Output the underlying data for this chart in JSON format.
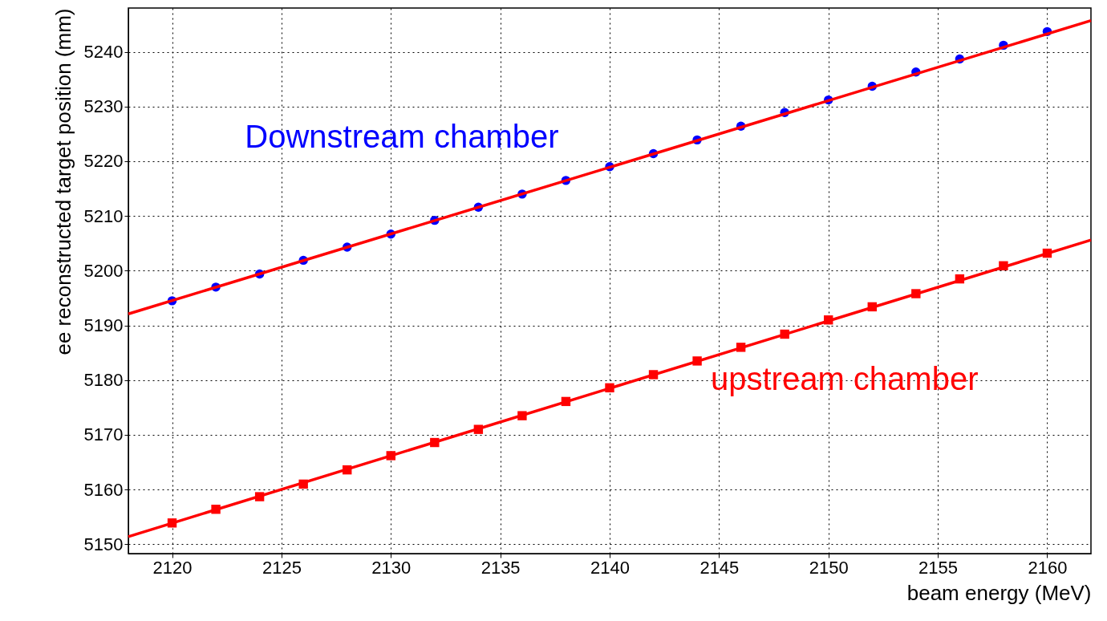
{
  "chart_data": {
    "type": "scatter",
    "xlabel": "beam energy (MeV)",
    "ylabel": "ee reconstructed target position (mm)",
    "xlim": [
      2118,
      2162
    ],
    "ylim": [
      5148.3,
      5248
    ],
    "xticks": [
      2120,
      2125,
      2130,
      2135,
      2140,
      2145,
      2150,
      2155,
      2160
    ],
    "yticks": [
      5150,
      5160,
      5170,
      5180,
      5190,
      5200,
      5210,
      5220,
      5230,
      5240
    ],
    "grid": true,
    "series": [
      {
        "name": "Downstream chamber",
        "marker": "circle",
        "color": "#0000ff",
        "x": [
          2120,
          2122,
          2124,
          2126,
          2128,
          2130,
          2132,
          2134,
          2136,
          2138,
          2140,
          2142,
          2144,
          2146,
          2148,
          2150,
          2152,
          2154,
          2156,
          2158,
          2160
        ],
        "values": [
          5194.5,
          5197,
          5199.4,
          5201.9,
          5204.3,
          5206.7,
          5209.2,
          5211.6,
          5214,
          5216.5,
          5219,
          5221.4,
          5223.9,
          5226.4,
          5228.9,
          5231.2,
          5233.7,
          5236.3,
          5238.7,
          5241.2,
          5243.7
        ]
      },
      {
        "name": "upstream chamber",
        "marker": "square",
        "color": "#ff0000",
        "x": [
          2120,
          2122,
          2124,
          2126,
          2128,
          2130,
          2132,
          2134,
          2136,
          2138,
          2140,
          2142,
          2144,
          2146,
          2148,
          2150,
          2152,
          2154,
          2156,
          2158,
          2160
        ],
        "values": [
          5153.9,
          5156.4,
          5158.7,
          5161,
          5163.6,
          5166.2,
          5168.6,
          5171,
          5173.5,
          5176.1,
          5178.6,
          5181,
          5183.5,
          5186,
          5188.4,
          5191,
          5193.4,
          5195.8,
          5198.5,
          5200.9,
          5203.2
        ]
      },
      {
        "type": "line",
        "marker": "none",
        "color": "#ff0000",
        "x": [
          2118,
          2162
        ],
        "values": [
          5192.1,
          5245.7
        ]
      },
      {
        "type": "line",
        "marker": "none",
        "color": "#ff0000",
        "x": [
          2118,
          2162
        ],
        "values": [
          5151.4,
          5205.6
        ]
      }
    ]
  }
}
